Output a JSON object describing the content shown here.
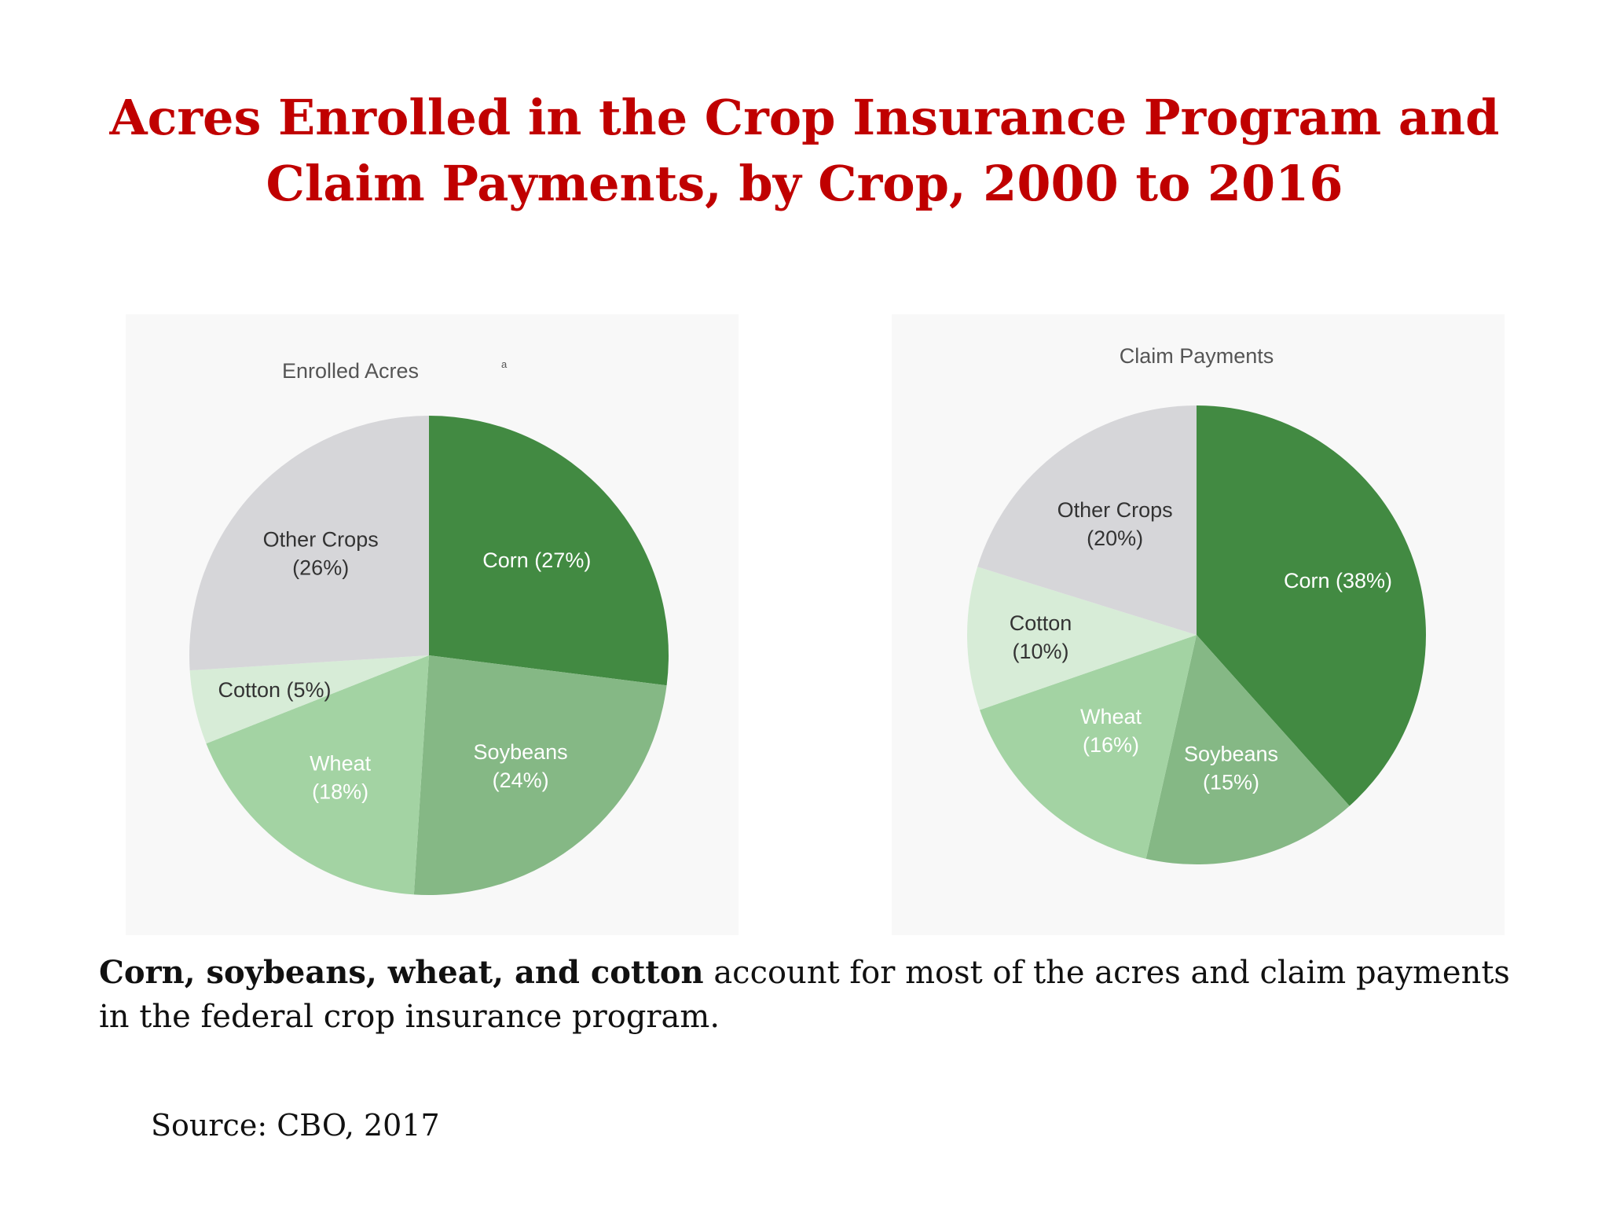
{
  "title": {
    "line1": "Acres Enrolled in the Crop Insurance Program and",
    "line2": "Claim Payments, by Crop, 2000 to 2016"
  },
  "colors": {
    "title": "#c00000",
    "corn": "#428a42",
    "soybeans": "#85b885",
    "wheat": "#a3d3a3",
    "cotton": "#d7ecd7",
    "other": "#d6d6d9"
  },
  "chart_data": [
    {
      "type": "pie",
      "title": "Enrolled Acres",
      "title_superscript": "a",
      "slices": [
        {
          "key": "corn",
          "name": "Corn",
          "value": 27,
          "label_lines": [
            "Corn (27%)"
          ]
        },
        {
          "key": "soybeans",
          "name": "Soybeans",
          "value": 24,
          "label_lines": [
            "Soybeans",
            "(24%)"
          ]
        },
        {
          "key": "wheat",
          "name": "Wheat",
          "value": 18,
          "label_lines": [
            "Wheat",
            "(18%)"
          ]
        },
        {
          "key": "cotton",
          "name": "Cotton",
          "value": 5,
          "label_lines": [
            "Cotton (5%)"
          ]
        },
        {
          "key": "other",
          "name": "Other Crops",
          "value": 26,
          "label_lines": [
            "Other Crops",
            "(26%)"
          ]
        }
      ]
    },
    {
      "type": "pie",
      "title": "Claim Payments",
      "slices": [
        {
          "key": "corn",
          "name": "Corn",
          "value": 38,
          "label_lines": [
            "Corn (38%)"
          ]
        },
        {
          "key": "soybeans",
          "name": "Soybeans",
          "value": 15,
          "label_lines": [
            "Soybeans",
            "(15%)"
          ]
        },
        {
          "key": "wheat",
          "name": "Wheat",
          "value": 16,
          "label_lines": [
            "Wheat",
            "(16%)"
          ]
        },
        {
          "key": "cotton",
          "name": "Cotton",
          "value": 10,
          "label_lines": [
            "Cotton",
            "(10%)"
          ]
        },
        {
          "key": "other",
          "name": "Other Crops",
          "value": 20,
          "label_lines": [
            "Other Crops",
            "(20%)"
          ]
        }
      ]
    }
  ],
  "caption": {
    "lead": "Corn, soybeans, wheat, and cotton",
    "rest": " account for most of the acres and claim payments in the federal crop insurance program."
  },
  "source": "Source: CBO, 2017"
}
